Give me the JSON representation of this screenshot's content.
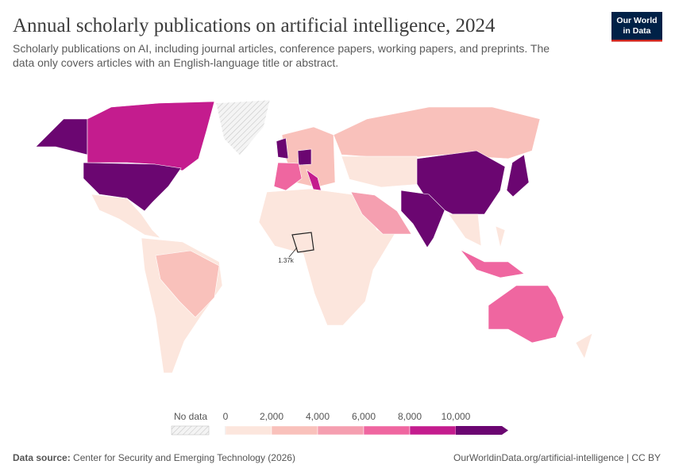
{
  "logo": [
    "Our World",
    "in Data"
  ],
  "title": "Annual scholarly publications on artificial intelligence, 2024",
  "subtitle": [
    "Scholarly publications on AI, including journal articles, conference papers, working papers, and preprints. The",
    "data only covers articles with an English-language title or abstract."
  ],
  "annotation": "1.37k",
  "legend": {
    "no_data_label": "No data",
    "ticks": [
      0,
      {
        "value": 2000,
        "label": "2,000"
      },
      {
        "value": 4000,
        "label": "4,000"
      },
      {
        "value": 6000,
        "label": "6,000"
      },
      {
        "value": 8000,
        "label": "8,000"
      },
      {
        "value": 10000,
        "label": "10,000"
      }
    ],
    "colors": [
      "#fce6dd",
      "#f9c1bb",
      "#f59fb0",
      "#ef66a0",
      "#c41c8e",
      "#6b0671"
    ]
  },
  "footer": {
    "source_label": "Data source:",
    "source": "Center for Security and Emerging Technology (2026)",
    "link": "OurWorldinData.org/artificial-intelligence | CC BY"
  }
}
